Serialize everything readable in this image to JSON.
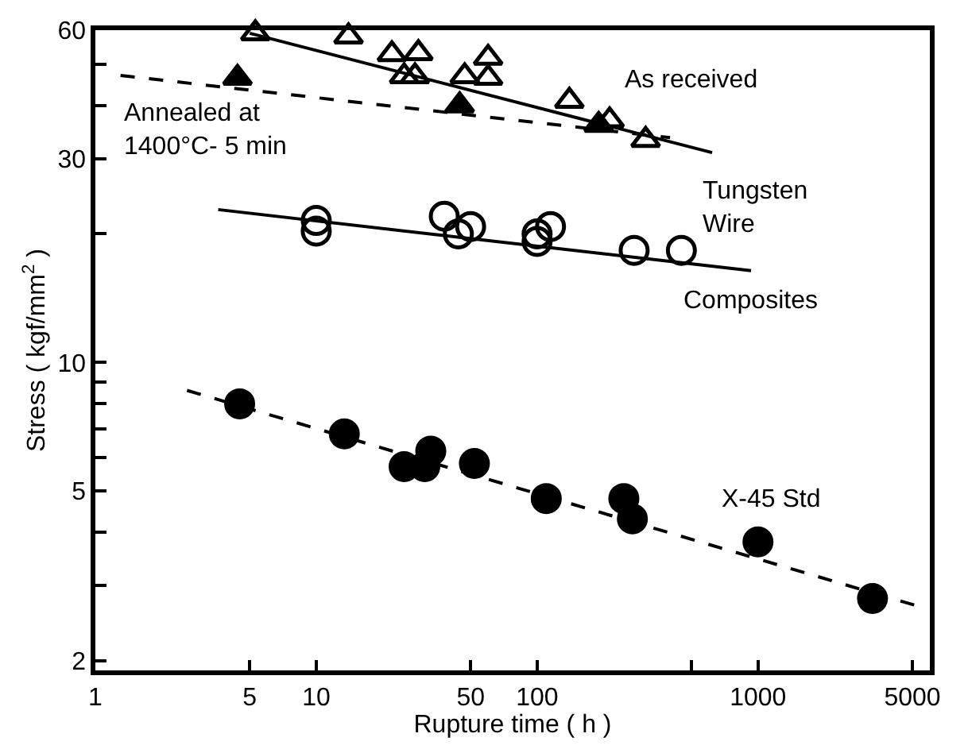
{
  "chart_data": {
    "type": "scatter",
    "xlabel": "Rupture time ( h )",
    "ylabel": "Stress ( kgf/mm$^{2}$ )",
    "log": "xy",
    "legend": false,
    "xlim": [
      1,
      6000
    ],
    "xticks": [
      1,
      5,
      10,
      50,
      100,
      {
        "value": 500,
        "label": null
      },
      1000,
      5000
    ],
    "ylim": [
      1.9,
      60
    ],
    "yticks": [
      2,
      {
        "value": 3,
        "label": null
      },
      {
        "value": 4,
        "label": null
      },
      5,
      {
        "value": 6,
        "label": null
      },
      {
        "value": 7,
        "label": null
      },
      {
        "value": 8,
        "label": null
      },
      {
        "value": 9,
        "label": null
      },
      10,
      {
        "value": 20,
        "label": null
      },
      30,
      {
        "value": 40,
        "label": null
      },
      {
        "value": 50,
        "label": null
      },
      60
    ],
    "series": [
      {
        "name": "As received",
        "marker": "triangle",
        "color": "#000000",
        "x": [
          5.3,
          14,
          22,
          29,
          25,
          28,
          47,
          60,
          60,
          140,
          213,
          310
        ],
        "values": [
          59,
          58,
          52.7,
          53,
          46.8,
          46.8,
          46.8,
          51.7,
          46.4,
          41,
          36.9,
          33.2
        ]
      },
      {
        "type": "line",
        "marker": "none",
        "line_style": "solid",
        "color": "#000000",
        "x": [
          5,
          620
        ],
        "values": [
          59,
          31
        ]
      },
      {
        "name": "Annealed at\n1400°C- 5 min",
        "marker": "triangle",
        "color": "#000000",
        "x": [
          4.4,
          44.6,
          190
        ],
        "values": [
          46.4,
          40,
          36
        ]
      },
      {
        "type": "line",
        "marker": "none",
        "line_style": "dashed",
        "color": "#000000",
        "x": [
          1.3,
          400
        ],
        "values": [
          47,
          33.6
        ]
      },
      {
        "name": "Composites",
        "marker": "circle",
        "color": "#000000",
        "x": [
          10,
          10,
          38,
          44,
          50,
          100,
          100,
          115,
          275,
          450
        ],
        "values": [
          21.5,
          20.3,
          22,
          20,
          20.8,
          20,
          19.2,
          20.8,
          18.3,
          18.3
        ]
      },
      {
        "type": "line",
        "marker": "none",
        "line_style": "solid",
        "color": "#000000",
        "x": [
          3.6,
          930
        ],
        "values": [
          22.8,
          16.4
        ]
      },
      {
        "name": "X-45 Std",
        "marker": "circle",
        "color": "#000000",
        "x": [
          4.5,
          13.4,
          25,
          31,
          33,
          52,
          110,
          247,
          270,
          1000,
          3300
        ],
        "values": [
          8.0,
          6.8,
          5.7,
          5.7,
          6.2,
          5.8,
          4.8,
          4.8,
          4.3,
          3.8,
          2.8
        ]
      },
      {
        "type": "line",
        "marker": "none",
        "line_style": "dashed",
        "color": "#000000",
        "x": [
          2.6,
          5800
        ],
        "values": [
          8.6,
          2.65
        ]
      }
    ],
    "annotations": [
      "Tungsten\nWire"
    ]
  }
}
